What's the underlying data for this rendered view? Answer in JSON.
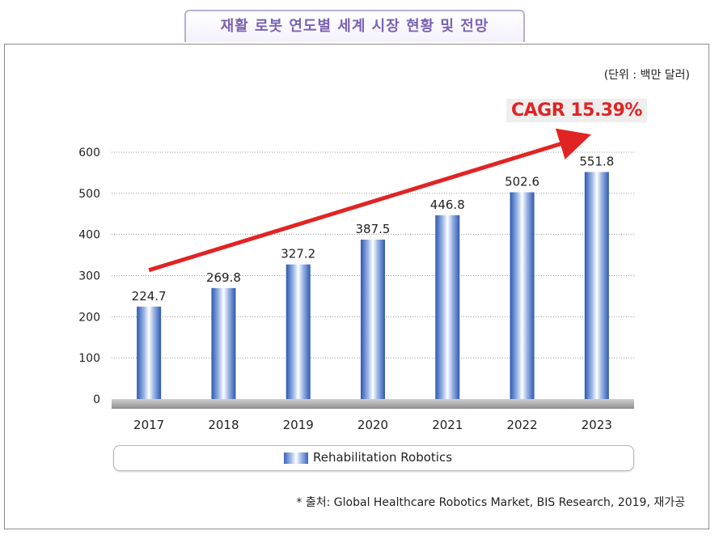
{
  "title": "재활 로봇 연도별 세계 시장 현황 및 전망",
  "unit_label": "(단위 : 백만 달러)",
  "cagr_label": "CAGR 15.39%",
  "source": "* 출처: Global Healthcare Robotics Market, BIS Research, 2019, 재가공",
  "colors": {
    "bar_dark": "#3a63b8",
    "bar_light": "#ffffff",
    "arrow": "#e02424",
    "floor": "#9a9a9a"
  },
  "chart_data": {
    "type": "bar",
    "categories": [
      "2017",
      "2018",
      "2019",
      "2020",
      "2021",
      "2022",
      "2023"
    ],
    "series": [
      {
        "name": "Rehabilitation Robotics",
        "values": [
          224.7,
          269.8,
          327.2,
          387.5,
          446.8,
          502.6,
          551.8
        ],
        "labels": [
          "224.7",
          "269.8",
          "327.2",
          "387.5",
          "446.8",
          "502.6",
          "551.8"
        ]
      }
    ],
    "yticks": [
      0,
      100,
      200,
      300,
      400,
      500,
      600
    ],
    "ylim": [
      0,
      600
    ],
    "grid": true,
    "legend": "bottom",
    "trend_arrow": true
  }
}
